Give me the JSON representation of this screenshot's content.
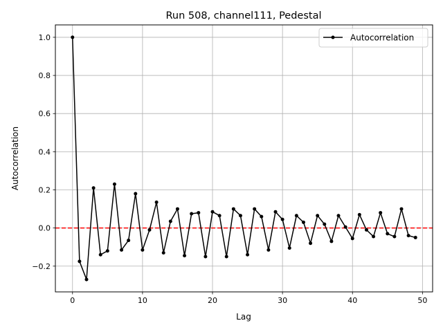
{
  "chart_data": {
    "type": "line",
    "title": "Run 508, channel111, Pedestal",
    "xlabel": "Lag",
    "ylabel": "Autocorrelation",
    "xlim": [
      -2.45,
      51.45
    ],
    "ylim": [
      -0.335,
      1.065
    ],
    "xticks": [
      0,
      10,
      20,
      30,
      40,
      50
    ],
    "yticks": [
      -0.2,
      0.0,
      0.2,
      0.4,
      0.6,
      0.8,
      1.0
    ],
    "xtick_labels": [
      "0",
      "10",
      "20",
      "30",
      "40",
      "50"
    ],
    "ytick_labels": [
      "−0.2",
      "0.0",
      "0.2",
      "0.4",
      "0.6",
      "0.8",
      "1.0"
    ],
    "grid": true,
    "legend_position": "upper-right",
    "reference_line": {
      "y": 0,
      "color": "#ff0000",
      "style": "dashed"
    },
    "series": [
      {
        "name": "Autocorrelation",
        "color": "#000000",
        "marker": "dot",
        "x": [
          0,
          1,
          2,
          3,
          4,
          5,
          6,
          7,
          8,
          9,
          10,
          11,
          12,
          13,
          14,
          15,
          16,
          17,
          18,
          19,
          20,
          21,
          22,
          23,
          24,
          25,
          26,
          27,
          28,
          29,
          30,
          31,
          32,
          33,
          34,
          35,
          36,
          37,
          38,
          39,
          40,
          41,
          42,
          43,
          44,
          45,
          46,
          47,
          48,
          49
        ],
        "values": [
          1.0,
          -0.175,
          -0.27,
          0.21,
          -0.14,
          -0.12,
          0.23,
          -0.115,
          -0.065,
          0.18,
          -0.115,
          -0.01,
          0.135,
          -0.13,
          0.035,
          0.1,
          -0.145,
          0.075,
          0.08,
          -0.15,
          0.085,
          0.065,
          -0.15,
          0.1,
          0.065,
          -0.14,
          0.1,
          0.06,
          -0.115,
          0.085,
          0.045,
          -0.105,
          0.065,
          0.03,
          -0.08,
          0.065,
          0.02,
          -0.07,
          0.065,
          0.005,
          -0.055,
          0.07,
          -0.01,
          -0.045,
          0.08,
          -0.03,
          -0.045,
          0.1,
          -0.04,
          -0.05
        ]
      }
    ]
  }
}
